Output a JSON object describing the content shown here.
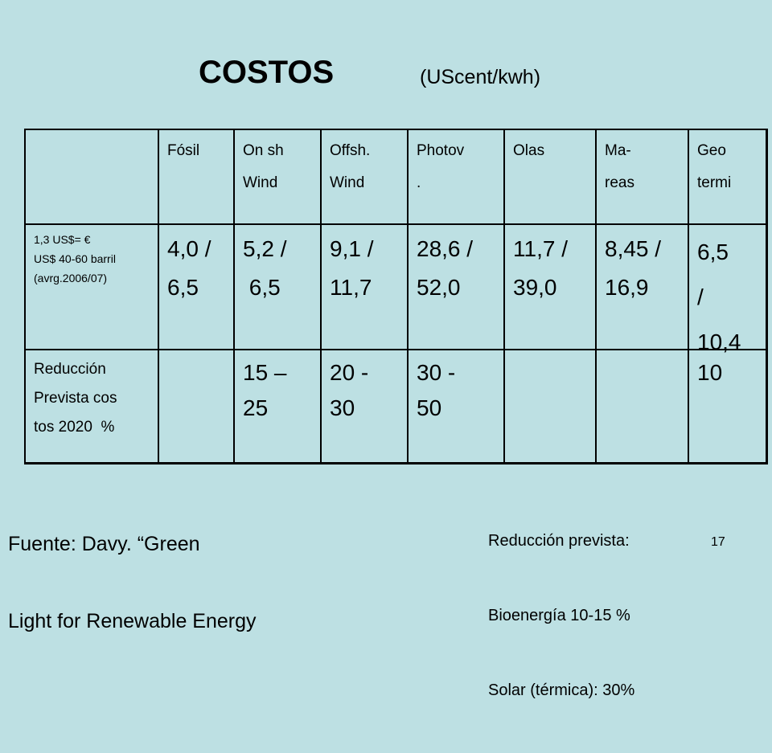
{
  "title": "COSTOS",
  "subtitle": "(UScent/kwh)",
  "table": {
    "header": [
      [
        "Fósil"
      ],
      [
        "On sh",
        "Wind"
      ],
      [
        "Offsh.",
        "Wind"
      ],
      [
        "Photov",
        "."
      ],
      [
        "Olas"
      ],
      [
        "Ma-",
        "reas"
      ],
      [
        "Geo",
        "termi"
      ]
    ],
    "rows": [
      {
        "label": [
          "1,3 US$= €",
          "US$ 40-60 barril",
          "(avrg.2006/07)"
        ],
        "cells": [
          [
            "4,0 /",
            "6,5"
          ],
          [
            "5,2 /",
            " 6,5"
          ],
          [
            "9,1 /",
            "11,7"
          ],
          [
            "28,6 /",
            "52,0"
          ],
          [
            "11,7 /",
            "39,0"
          ],
          [
            "8,45 /",
            "16,9"
          ],
          [
            "6,5",
            "/",
            "10,4"
          ]
        ]
      },
      {
        "label": [
          "Reducción",
          "Prevista cos",
          "tos 2020  %"
        ],
        "cells": [
          null,
          [
            "15 –",
            "25"
          ],
          [
            "20 -",
            "30"
          ],
          [
            "30 -",
            "50"
          ],
          null,
          null,
          [
            "10"
          ]
        ]
      }
    ]
  },
  "source": [
    "Fuente: Davy. “Green",
    "Light for Renewable Energy"
  ],
  "note": [
    "Reducción prevista:",
    "Bioenergía 10-15 %",
    "Solar (térmica): 30%"
  ],
  "page_number": "17"
}
